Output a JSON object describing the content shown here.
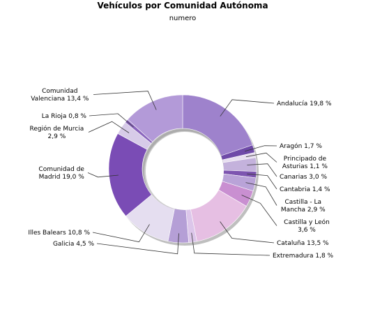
{
  "chart_data": {
    "type": "pie",
    "variant": "donut",
    "title": "Vehículos por Comunidad Autónoma",
    "subtitle": "numero",
    "slices": [
      {
        "label": "Andalucía 19,8 %",
        "value": 19.8,
        "color": "#9e82cc"
      },
      {
        "label": "Aragón 1,7 %",
        "value": 1.7,
        "color": "#6f4aa8"
      },
      {
        "label": "Principado de Asturias 1,1 %",
        "value": 1.1,
        "color": "#e8dff0"
      },
      {
        "label": "Canarias 3,0 %",
        "value": 3.0,
        "color": "#c4b2dc"
      },
      {
        "label": "Cantabria 1,4 %",
        "value": 1.4,
        "color": "#7d55b0"
      },
      {
        "label": "Castilla - La Mancha 2,9 %",
        "value": 2.9,
        "color": "#b9a3d8"
      },
      {
        "label": "Castilla y León 3,6 %",
        "value": 3.6,
        "color": "#c98fd1"
      },
      {
        "label": "Cataluña 13,5 %",
        "value": 13.5,
        "color": "#e6bfe3"
      },
      {
        "label": "Extremadura 1,8 %",
        "value": 1.8,
        "color": "#dcc6ea"
      },
      {
        "label": "Galicia 4,5 %",
        "value": 4.5,
        "color": "#b59fd6"
      },
      {
        "label": "Illes Balears 10,8 %",
        "value": 10.8,
        "color": "#e5def0"
      },
      {
        "label": "Comunidad de Madrid 19,0 %",
        "value": 19.0,
        "color": "#7a4cb5"
      },
      {
        "label": "Región de Murcia 2,9 %",
        "value": 2.9,
        "color": "#d7cbe8"
      },
      {
        "label": "La Rioja 0,8 %",
        "value": 0.8,
        "color": "#8a65bd"
      },
      {
        "label": "Comunidad Valenciana 13,4 %",
        "value": 13.4,
        "color": "#b39ad8"
      }
    ],
    "label_lines": [
      [
        "Andalucía 19,8 %"
      ],
      [
        "Aragón 1,7 %"
      ],
      [
        "Principado de",
        "Asturias 1,1 %"
      ],
      [
        "Canarias 3,0 %"
      ],
      [
        "Cantabria 1,4 %"
      ],
      [
        "Castilla - La",
        "Mancha 2,9 %"
      ],
      [
        "Castilla y León",
        "3,6 %"
      ],
      [
        "Cataluña 13,5 %"
      ],
      [
        "Extremadura 1,8 %"
      ],
      [
        "Galicia 4,5 %"
      ],
      [
        "Illes Balears 10,8 %"
      ],
      [
        "Comunidad de",
        "Madrid 19,0 %"
      ],
      [
        "Región de Murcia",
        "2,9 %"
      ],
      [
        "La Rioja 0,8 %"
      ],
      [
        "Comunidad",
        "Valenciana 13,4 %"
      ]
    ],
    "start_angle_deg": 0,
    "direction": "clockwise",
    "legend": "none"
  }
}
